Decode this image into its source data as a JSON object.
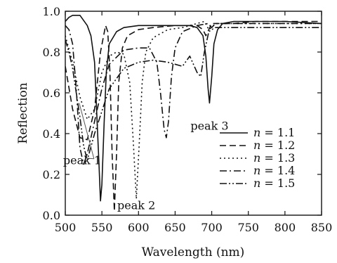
{
  "chart_data": {
    "type": "line",
    "xlabel": "Wavelength (nm)",
    "ylabel": "Reflection",
    "xlim": [
      500,
      850
    ],
    "ylim": [
      0.0,
      1.0
    ],
    "xticks": [
      500,
      550,
      600,
      650,
      700,
      750,
      800,
      850
    ],
    "yticks": [
      0.0,
      0.2,
      0.4,
      0.6,
      0.8,
      1.0
    ],
    "x_tick_labels": [
      "500",
      "550",
      "600",
      "650",
      "700",
      "750",
      "800",
      "850"
    ],
    "y_tick_labels": [
      "0.0",
      "0.2",
      "0.4",
      "0.6",
      "0.8",
      "1.0"
    ],
    "grid": false,
    "legend_position": "center-right",
    "series": [
      {
        "name": "n = 1.1",
        "dash": "solid",
        "x": [
          500,
          505,
          510,
          520,
          530,
          535,
          540,
          543,
          546,
          548,
          550,
          553,
          556,
          560,
          570,
          580,
          600,
          620,
          650,
          670,
          680,
          688,
          692,
          695,
          697,
          700,
          703,
          708,
          715,
          730,
          760,
          800,
          850
        ],
        "y": [
          0.95,
          0.97,
          0.98,
          0.98,
          0.93,
          0.88,
          0.75,
          0.5,
          0.25,
          0.07,
          0.15,
          0.45,
          0.7,
          0.84,
          0.9,
          0.92,
          0.93,
          0.93,
          0.93,
          0.93,
          0.92,
          0.88,
          0.78,
          0.62,
          0.55,
          0.68,
          0.84,
          0.91,
          0.94,
          0.95,
          0.95,
          0.95,
          0.94
        ]
      },
      {
        "name": "n = 1.2",
        "dash": "9,5",
        "x": [
          500,
          510,
          520,
          530,
          540,
          548,
          555,
          558,
          561,
          564,
          567,
          570,
          573,
          578,
          585,
          600,
          620,
          650,
          680,
          688,
          692,
          696,
          700,
          705,
          712,
          730,
          760,
          800,
          850
        ],
        "y": [
          0.73,
          0.52,
          0.38,
          0.37,
          0.52,
          0.8,
          0.93,
          0.9,
          0.7,
          0.3,
          0.02,
          0.3,
          0.65,
          0.82,
          0.88,
          0.91,
          0.92,
          0.93,
          0.93,
          0.91,
          0.88,
          0.91,
          0.94,
          0.94,
          0.94,
          0.94,
          0.95,
          0.95,
          0.95
        ]
      },
      {
        "name": "n = 1.3",
        "dash": "2,4",
        "x": [
          500,
          510,
          520,
          530,
          540,
          550,
          560,
          570,
          580,
          588,
          593,
          597,
          601,
          605,
          610,
          620,
          640,
          660,
          680,
          690,
          696,
          700,
          705,
          712,
          730,
          760,
          800,
          850
        ],
        "y": [
          0.88,
          0.75,
          0.58,
          0.47,
          0.52,
          0.7,
          0.78,
          0.8,
          0.79,
          0.65,
          0.35,
          0.08,
          0.35,
          0.65,
          0.8,
          0.87,
          0.91,
          0.92,
          0.94,
          0.95,
          0.91,
          0.92,
          0.94,
          0.94,
          0.94,
          0.94,
          0.94,
          0.94
        ]
      },
      {
        "name": "n = 1.4",
        "dash": "10,4,2,4",
        "x": [
          500,
          505,
          510,
          515,
          520,
          525,
          530,
          540,
          550,
          560,
          580,
          600,
          615,
          625,
          630,
          635,
          638,
          641,
          645,
          650,
          660,
          680,
          695,
          700,
          705,
          715,
          730,
          760,
          800,
          850
        ],
        "y": [
          0.93,
          0.91,
          0.84,
          0.62,
          0.33,
          0.25,
          0.3,
          0.46,
          0.62,
          0.74,
          0.81,
          0.82,
          0.82,
          0.75,
          0.6,
          0.42,
          0.38,
          0.46,
          0.68,
          0.82,
          0.9,
          0.93,
          0.94,
          0.92,
          0.94,
          0.94,
          0.94,
          0.94,
          0.94,
          0.94
        ]
      },
      {
        "name": "n = 1.5",
        "dash": "10,3,2,3,2,3",
        "x": [
          500,
          505,
          510,
          515,
          520,
          525,
          530,
          540,
          560,
          580,
          600,
          620,
          640,
          660,
          670,
          680,
          685,
          690,
          696,
          700,
          705,
          715,
          730,
          760,
          800,
          850
        ],
        "y": [
          0.86,
          0.8,
          0.72,
          0.6,
          0.48,
          0.34,
          0.27,
          0.4,
          0.62,
          0.72,
          0.75,
          0.76,
          0.75,
          0.73,
          0.78,
          0.7,
          0.68,
          0.8,
          0.9,
          0.91,
          0.92,
          0.92,
          0.92,
          0.92,
          0.92,
          0.92
        ]
      }
    ],
    "annotations": [
      {
        "text": "peak 1",
        "x": 497,
        "y": 0.27,
        "arrows_to": [
          [
            519,
            0.55
          ],
          [
            527,
            0.28
          ]
        ]
      },
      {
        "text": "peak 2",
        "x": 571,
        "y": 0.05
      },
      {
        "text": "peak 3",
        "x": 671,
        "y": 0.44
      }
    ]
  }
}
